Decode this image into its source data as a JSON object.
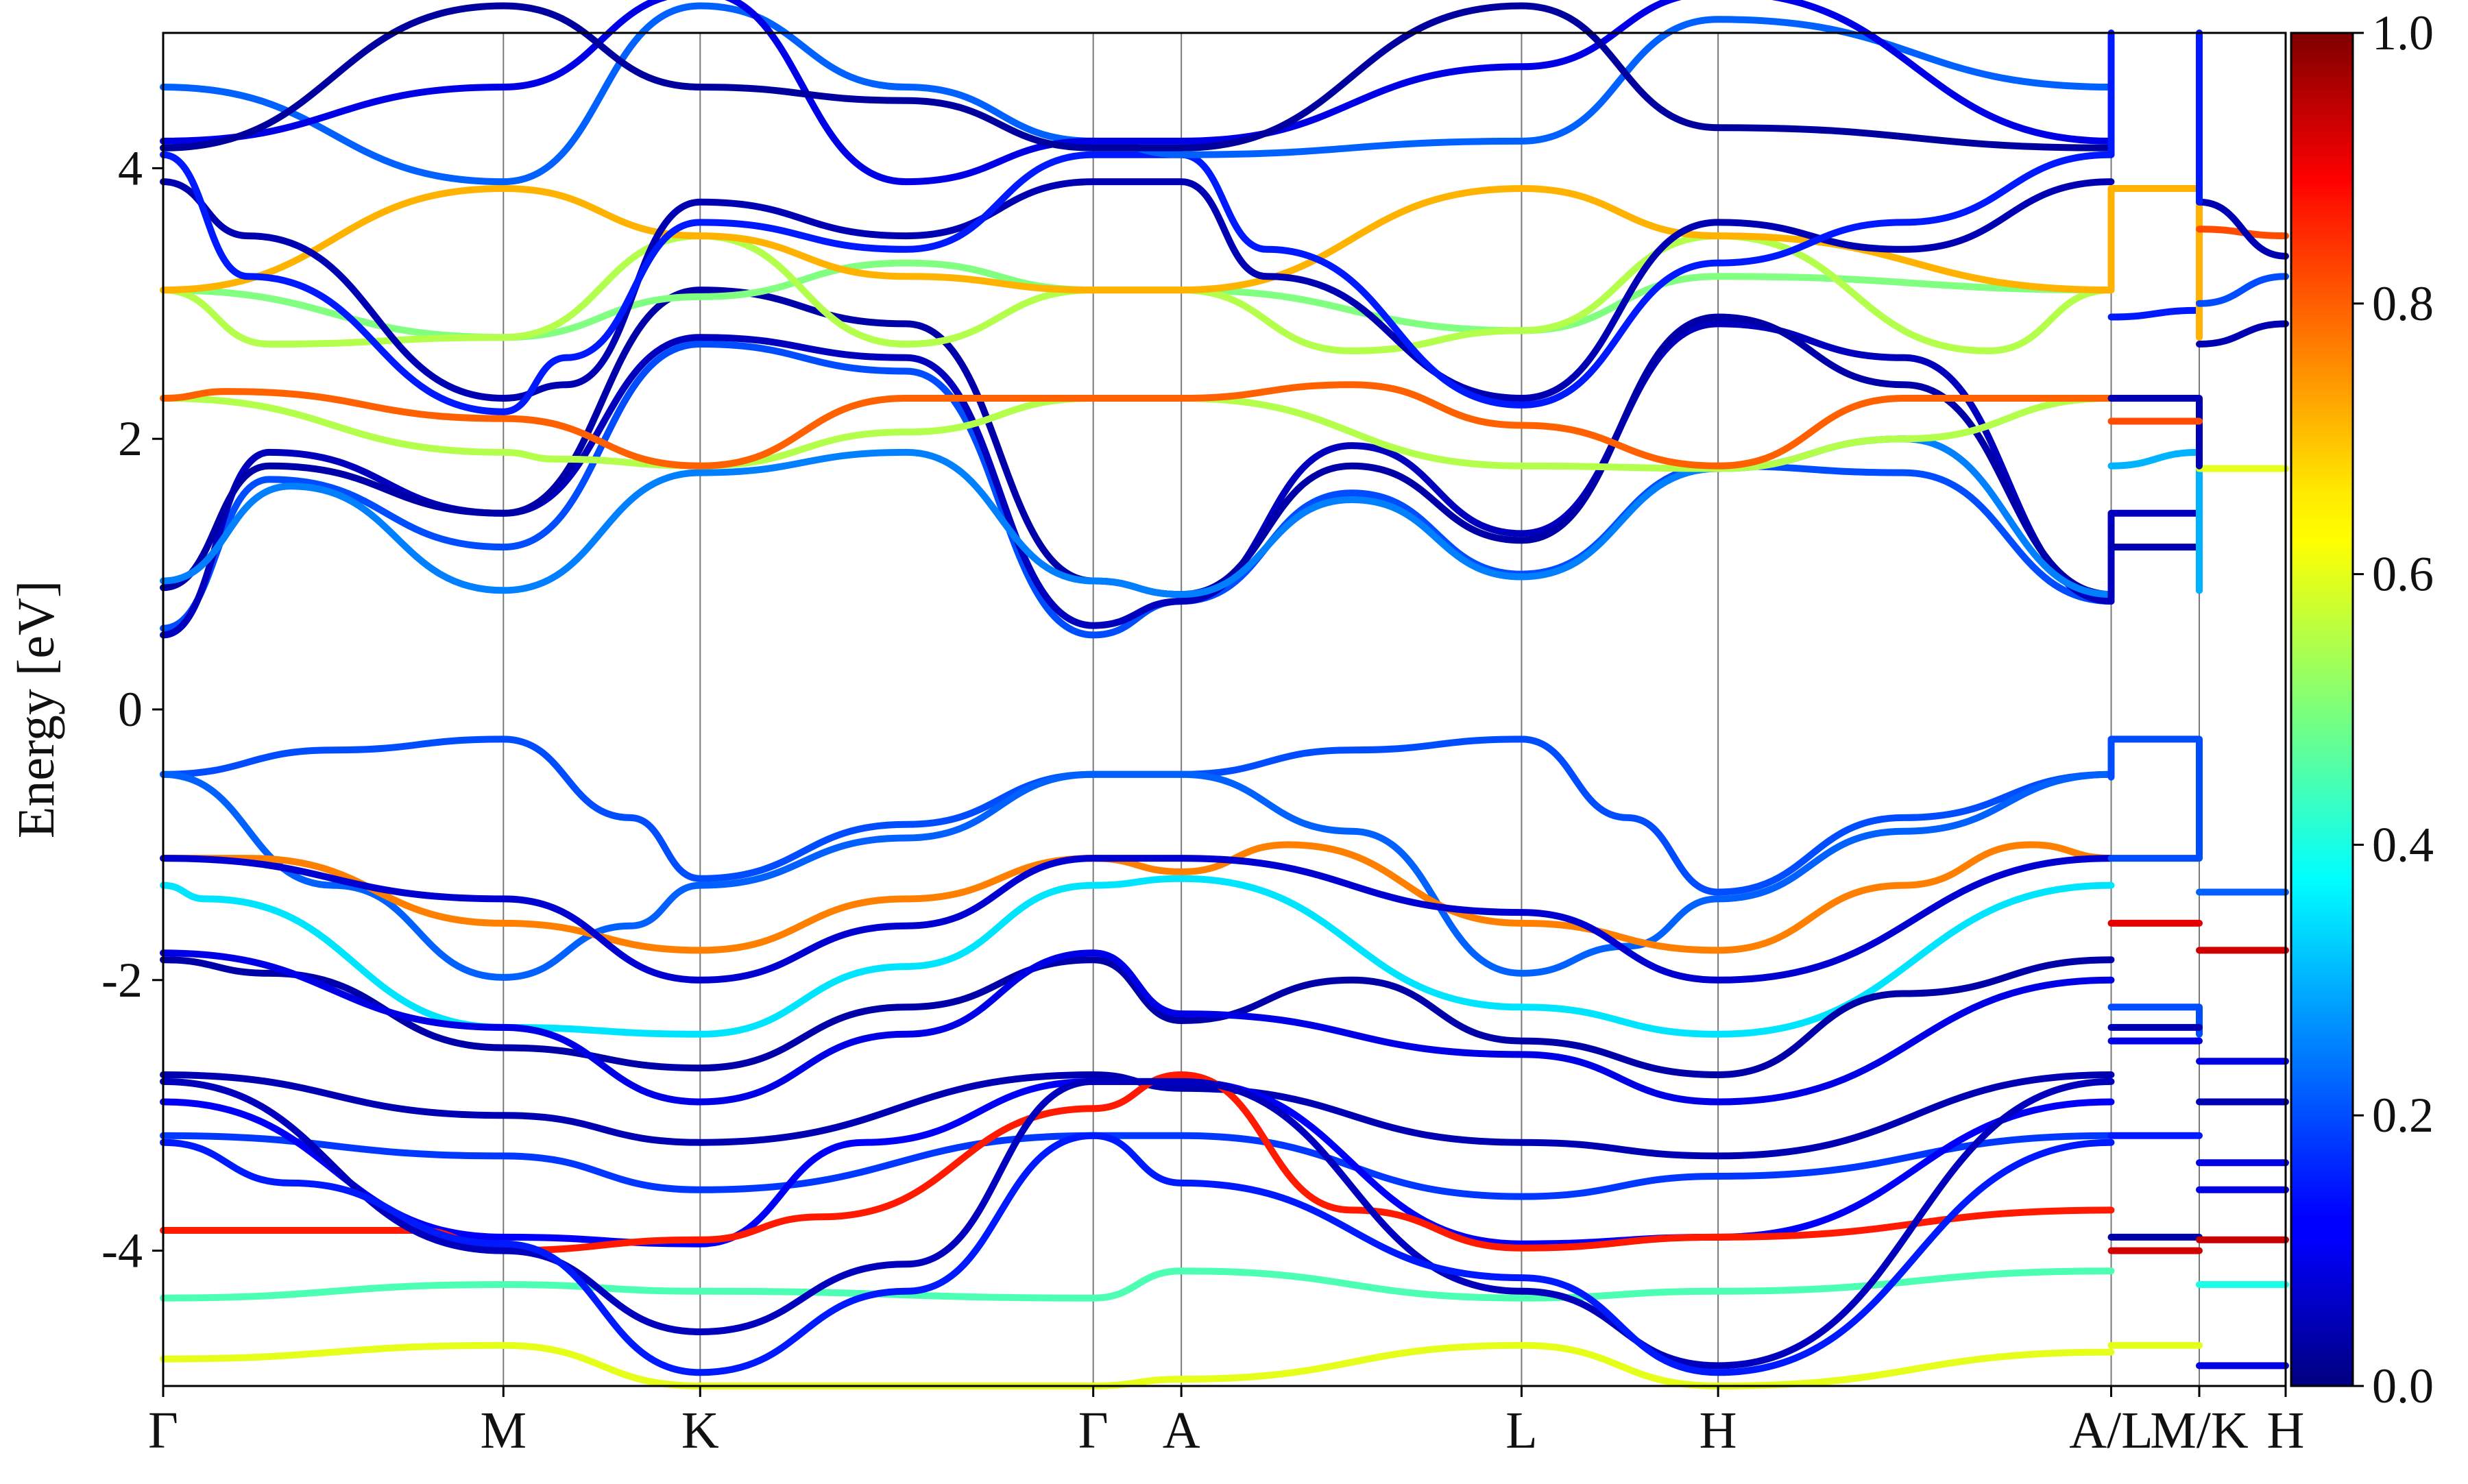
{
  "chart_data": {
    "type": "line",
    "title": "",
    "xlabel": "",
    "ylabel": "Energy [eV]",
    "ylim": [
      -5,
      5
    ],
    "y_ticks": [
      4,
      2,
      0,
      -2,
      -4
    ],
    "y_tick_labels": [
      "4",
      "2",
      "0",
      "-2",
      "-4"
    ],
    "k_points": [
      {
        "label": "Γ",
        "x": 0.0
      },
      {
        "label": "M",
        "x": 0.1603
      },
      {
        "label": "K",
        "x": 0.253
      },
      {
        "label": "Γ",
        "x": 0.4382
      },
      {
        "label": "A",
        "x": 0.4797
      },
      {
        "label": "L",
        "x": 0.64
      },
      {
        "label": "H",
        "x": 0.7326
      },
      {
        "label": "A/L",
        "x": 0.9178
      },
      {
        "label": "M/K",
        "x": 0.9593
      },
      {
        "label": "H",
        "x": 1.0
      }
    ],
    "colorbar": {
      "colormap": "jet",
      "range": [
        0.0,
        1.0
      ],
      "ticks": [
        0.0,
        0.2,
        0.4,
        0.6,
        0.8,
        1.0
      ],
      "tick_labels": [
        "0.0",
        "0.2",
        "0.4",
        "0.6",
        "0.8",
        "1.0"
      ]
    },
    "series": [
      {
        "x": [
          0,
          0.08,
          0.1603,
          0.22,
          0.253,
          0.35,
          0.4382,
          0.4797,
          0.56,
          0.64,
          0.69,
          0.7326,
          0.82,
          0.9178
        ],
        "y": [
          -0.48,
          -0.3,
          -0.22,
          -0.8,
          -1.25,
          -0.85,
          -0.48,
          -0.48,
          -0.3,
          -0.22,
          -0.8,
          -1.35,
          -0.8,
          -0.48
        ],
        "w": 0.2
      },
      {
        "x": [
          0,
          0.08,
          0.1603,
          0.22,
          0.253,
          0.35,
          0.4382,
          0.4797,
          0.56,
          0.64,
          0.69,
          0.7326,
          0.82,
          0.9178
        ],
        "y": [
          -0.48,
          -1.3,
          -1.98,
          -1.6,
          -1.3,
          -0.95,
          -0.48,
          -0.48,
          -0.9,
          -1.95,
          -1.75,
          -1.4,
          -0.9,
          -0.48
        ],
        "w": 0.22
      },
      {
        "x": [
          0,
          0.04,
          0.1603,
          0.253,
          0.35,
          0.4382,
          0.4797,
          0.53,
          0.64,
          0.7326,
          0.82,
          0.88,
          0.9178
        ],
        "y": [
          -1.1,
          -1.1,
          -1.58,
          -1.78,
          -1.4,
          -1.1,
          -1.2,
          -1.0,
          -1.58,
          -1.78,
          -1.3,
          -1.0,
          -1.1
        ],
        "w": 0.75
      },
      {
        "x": [
          0,
          0.02,
          0.1603,
          0.253,
          0.35,
          0.4382,
          0.4797,
          0.64,
          0.7326,
          0.9178
        ],
        "y": [
          -1.3,
          -1.4,
          -2.35,
          -2.4,
          -1.9,
          -1.3,
          -1.25,
          -2.2,
          -2.4,
          -1.3
        ],
        "w": 0.35
      },
      {
        "x": [
          0,
          0.1603,
          0.253,
          0.35,
          0.4382,
          0.4797,
          0.64,
          0.7326,
          0.9178
        ],
        "y": [
          -1.1,
          -1.4,
          -2.0,
          -1.6,
          -1.1,
          -1.1,
          -1.5,
          -2.0,
          -1.1
        ],
        "w": 0.08
      },
      {
        "x": [
          0,
          0.05,
          0.1603,
          0.253,
          0.35,
          0.4382,
          0.4797,
          0.56,
          0.64,
          0.7326,
          0.82,
          0.9178
        ],
        "y": [
          -1.85,
          -1.95,
          -2.5,
          -2.65,
          -2.2,
          -1.85,
          -2.3,
          -2.0,
          -2.45,
          -2.7,
          -2.1,
          -1.85
        ],
        "w": 0.04
      },
      {
        "x": [
          0,
          0.1603,
          0.253,
          0.35,
          0.4382,
          0.4797,
          0.64,
          0.7326,
          0.9178
        ],
        "y": [
          -1.8,
          -2.35,
          -2.9,
          -2.4,
          -1.8,
          -2.25,
          -2.55,
          -2.9,
          -2.0
        ],
        "w": 0.1
      },
      {
        "x": [
          0,
          0.1603,
          0.253,
          0.4382,
          0.4797,
          0.64,
          0.7326,
          0.9178
        ],
        "y": [
          -2.7,
          -3.0,
          -3.2,
          -2.7,
          -2.8,
          -3.2,
          -3.3,
          -2.7
        ],
        "w": 0.05
      },
      {
        "x": [
          0,
          0.1603,
          0.253,
          0.4382,
          0.4797,
          0.64,
          0.7326,
          0.9178
        ],
        "y": [
          -3.15,
          -3.3,
          -3.55,
          -3.15,
          -3.15,
          -3.6,
          -3.45,
          -3.15
        ],
        "w": 0.18
      },
      {
        "x": [
          0,
          0.1603,
          0.253,
          0.33,
          0.4382,
          0.4797,
          0.64,
          0.7326,
          0.9178
        ],
        "y": [
          -2.9,
          -3.9,
          -3.95,
          -3.2,
          -2.75,
          -2.75,
          -3.95,
          -3.9,
          -2.9
        ],
        "w": 0.12
      },
      {
        "x": [
          0,
          0.12,
          0.1603,
          0.253,
          0.31,
          0.4382,
          0.4797,
          0.56,
          0.64,
          0.7326,
          0.9178
        ],
        "y": [
          -3.85,
          -3.85,
          -4.0,
          -3.92,
          -3.75,
          -2.95,
          -2.7,
          -3.7,
          -3.98,
          -3.9,
          -3.7
        ],
        "w": 0.85
      },
      {
        "x": [
          0,
          0.1603,
          0.253,
          0.4382,
          0.4797,
          0.64,
          0.7326,
          0.9178
        ],
        "y": [
          -4.35,
          -4.25,
          -4.3,
          -4.35,
          -4.15,
          -4.35,
          -4.3,
          -4.15
        ],
        "w": 0.45
      },
      {
        "x": [
          0,
          0.1603,
          0.253,
          0.4382,
          0.4797,
          0.64,
          0.7326,
          0.9178
        ],
        "y": [
          -4.8,
          -4.7,
          -5.0,
          -5.0,
          -4.95,
          -4.7,
          -5.0,
          -4.75
        ],
        "w": 0.6
      },
      {
        "x": [
          0,
          0.1603,
          0.253,
          0.35,
          0.4382,
          0.4797,
          0.64,
          0.7326,
          0.9178
        ],
        "y": [
          -2.75,
          -4.0,
          -4.6,
          -4.1,
          -2.75,
          -2.75,
          -4.3,
          -4.85,
          -2.75
        ],
        "w": 0.06
      },
      {
        "x": [
          0,
          0.06,
          0.1603,
          0.253,
          0.35,
          0.4382,
          0.4797,
          0.64,
          0.7326,
          0.9178
        ],
        "y": [
          -3.2,
          -3.5,
          -3.95,
          -4.9,
          -4.3,
          -3.15,
          -3.5,
          -4.2,
          -4.9,
          -3.2
        ],
        "w": 0.15
      },
      {
        "x": [
          0,
          0.05,
          0.1603,
          0.253,
          0.35,
          0.4382,
          0.4797,
          0.56,
          0.64,
          0.7326,
          0.82,
          0.9178
        ],
        "y": [
          0.6,
          1.7,
          1.2,
          2.7,
          2.5,
          0.55,
          0.8,
          1.6,
          1.0,
          1.8,
          1.75,
          0.8
        ],
        "w": 0.2
      },
      {
        "x": [
          0,
          0.05,
          0.1603,
          0.253,
          0.35,
          0.4382,
          0.4797,
          0.56,
          0.64,
          0.7326,
          0.82,
          0.9178
        ],
        "y": [
          0.55,
          1.9,
          1.45,
          2.75,
          2.6,
          0.62,
          0.8,
          1.95,
          1.3,
          2.85,
          2.6,
          0.8
        ],
        "w": 0.06
      },
      {
        "x": [
          0,
          0.05,
          0.1603,
          0.253,
          0.35,
          0.4382,
          0.4797,
          0.56,
          0.64,
          0.7326,
          0.82,
          0.9178
        ],
        "y": [
          0.9,
          1.8,
          1.45,
          3.1,
          2.85,
          0.95,
          0.85,
          1.8,
          1.25,
          2.9,
          2.4,
          0.85
        ],
        "w": 0.04
      },
      {
        "x": [
          0,
          0.06,
          0.1603,
          0.253,
          0.35,
          0.4382,
          0.4797,
          0.56,
          0.64,
          0.7326,
          0.82,
          0.9178
        ],
        "y": [
          0.95,
          1.65,
          0.88,
          1.75,
          1.9,
          0.95,
          0.85,
          1.55,
          0.98,
          1.78,
          2.0,
          0.85
        ],
        "w": 0.25
      },
      {
        "x": [
          0,
          0.1603,
          0.185,
          0.253,
          0.35,
          0.4382,
          0.4797,
          0.64,
          0.7326,
          0.82,
          0.9178
        ],
        "y": [
          2.3,
          1.9,
          1.85,
          1.8,
          2.05,
          2.3,
          2.3,
          1.8,
          1.78,
          2.0,
          2.3
        ],
        "w": 0.55
      },
      {
        "x": [
          0,
          0.03,
          0.1603,
          0.253,
          0.35,
          0.4382,
          0.4797,
          0.56,
          0.64,
          0.7326,
          0.82,
          0.9178
        ],
        "y": [
          2.3,
          2.35,
          2.15,
          1.8,
          2.3,
          2.3,
          2.3,
          2.4,
          2.1,
          1.8,
          2.3,
          2.3
        ],
        "w": 0.78
      },
      {
        "x": [
          0,
          0.1603,
          0.253,
          0.35,
          0.4382,
          0.4797,
          0.64,
          0.7326,
          0.9178
        ],
        "y": [
          3.1,
          2.75,
          3.05,
          3.3,
          3.1,
          3.1,
          2.8,
          3.2,
          3.1
        ],
        "w": 0.5
      },
      {
        "x": [
          0,
          0.05,
          0.1603,
          0.253,
          0.35,
          0.4382,
          0.4797,
          0.56,
          0.64,
          0.7326,
          0.86,
          0.9178
        ],
        "y": [
          3.1,
          2.7,
          2.75,
          3.5,
          2.7,
          3.1,
          3.1,
          2.65,
          2.8,
          3.5,
          2.65,
          3.1
        ],
        "w": 0.55
      },
      {
        "x": [
          0,
          0.1603,
          0.253,
          0.35,
          0.4382,
          0.4797,
          0.64,
          0.7326,
          0.9178
        ],
        "y": [
          3.1,
          3.85,
          3.5,
          3.2,
          3.1,
          3.1,
          3.85,
          3.5,
          3.1
        ],
        "w": 0.7
      },
      {
        "x": [
          0,
          0.04,
          0.1603,
          0.19,
          0.253,
          0.35,
          0.4382,
          0.4797,
          0.52,
          0.64,
          0.7326,
          0.82,
          0.9178
        ],
        "y": [
          3.9,
          3.5,
          2.3,
          2.4,
          3.75,
          3.5,
          3.9,
          3.9,
          3.2,
          2.3,
          3.6,
          3.4,
          3.9
        ],
        "w": 0.05
      },
      {
        "x": [
          0,
          0.04,
          0.1603,
          0.19,
          0.253,
          0.35,
          0.4382,
          0.4797,
          0.52,
          0.64,
          0.7326,
          0.82,
          0.9178
        ],
        "y": [
          4.1,
          3.2,
          2.2,
          2.6,
          3.6,
          3.4,
          4.1,
          4.1,
          3.4,
          2.25,
          3.3,
          3.6,
          4.1
        ],
        "w": 0.15
      },
      {
        "x": [
          0,
          0.1603,
          0.253,
          0.35,
          0.4382,
          0.4797,
          0.64,
          0.7326,
          0.9178
        ],
        "y": [
          4.6,
          3.9,
          5.2,
          4.6,
          4.2,
          4.1,
          4.2,
          5.1,
          4.6
        ],
        "w": 0.22
      },
      {
        "x": [
          0,
          0.1603,
          0.253,
          0.35,
          0.4382,
          0.4797,
          0.64,
          0.7326,
          0.9178
        ],
        "y": [
          4.2,
          4.6,
          5.3,
          3.9,
          4.2,
          4.2,
          4.75,
          5.3,
          4.2
        ],
        "w": 0.1
      },
      {
        "x": [
          0,
          0.1603,
          0.253,
          0.35,
          0.4382,
          0.4797,
          0.64,
          0.7326,
          0.9178
        ],
        "y": [
          4.15,
          5.2,
          4.6,
          4.5,
          4.15,
          4.15,
          5.2,
          4.3,
          4.15
        ],
        "w": 0.03
      },
      {
        "x": [
          0.9178,
          0.9178,
          0.9593,
          0.9593,
          0.9178
        ],
        "y": [
          -0.5,
          -0.22,
          -0.22,
          -1.1,
          -1.1
        ],
        "w": 0.2
      },
      {
        "x": [
          0.9593,
          1.0
        ],
        "y": [
          -1.35,
          -1.35
        ],
        "w": 0.22
      },
      {
        "x": [
          0.9178,
          0.9593
        ],
        "y": [
          -1.58,
          -1.58
        ],
        "w": 0.9
      },
      {
        "x": [
          0.9593,
          1.0
        ],
        "y": [
          -1.78,
          -1.78
        ],
        "w": 0.92
      },
      {
        "x": [
          0.9178,
          0.9593,
          0.9593
        ],
        "y": [
          -2.2,
          -2.2,
          -2.4
        ],
        "w": 0.2
      },
      {
        "x": [
          0.9178,
          0.9593
        ],
        "y": [
          -2.35,
          -2.35
        ],
        "w": 0.05
      },
      {
        "x": [
          0.9178,
          0.9593
        ],
        "y": [
          -2.45,
          -2.45
        ],
        "w": 0.1
      },
      {
        "x": [
          0.9593,
          1.0
        ],
        "y": [
          -2.6,
          -2.6
        ],
        "w": 0.1
      },
      {
        "x": [
          0.9593,
          1.0
        ],
        "y": [
          -2.9,
          -2.9
        ],
        "w": 0.05
      },
      {
        "x": [
          0.9178,
          0.9593
        ],
        "y": [
          -3.15,
          -3.15
        ],
        "w": 0.15
      },
      {
        "x": [
          0.9593,
          1.0
        ],
        "y": [
          -3.35,
          -3.35
        ],
        "w": 0.1
      },
      {
        "x": [
          0.9593,
          1.0
        ],
        "y": [
          -3.55,
          -3.55
        ],
        "w": 0.1
      },
      {
        "x": [
          0.9178,
          0.9593
        ],
        "y": [
          -3.9,
          -3.9
        ],
        "w": 0.04
      },
      {
        "x": [
          0.9178,
          0.9593
        ],
        "y": [
          -4.0,
          -4.0
        ],
        "w": 0.92
      },
      {
        "x": [
          0.9593,
          1.0
        ],
        "y": [
          -3.92,
          -3.92
        ],
        "w": 0.93
      },
      {
        "x": [
          0.9593,
          1.0
        ],
        "y": [
          -4.25,
          -4.25
        ],
        "w": 0.4
      },
      {
        "x": [
          0.9178,
          0.9593
        ],
        "y": [
          -4.7,
          -4.7
        ],
        "w": 0.6
      },
      {
        "x": [
          0.9593,
          1.0
        ],
        "y": [
          -4.85,
          -4.85
        ],
        "w": 0.1
      },
      {
        "x": [
          0.9178,
          0.9178,
          0.9593,
          0.9593
        ],
        "y": [
          0.8,
          1.45,
          1.45,
          0.88
        ],
        "w": 0.06
      },
      {
        "x": [
          0.9178,
          0.9593
        ],
        "y": [
          1.2,
          1.2
        ],
        "w": 0.05
      },
      {
        "x": [
          0.9178,
          0.9593,
          0.9593
        ],
        "y": [
          1.8,
          1.9,
          0.88
        ],
        "w": 0.3
      },
      {
        "x": [
          0.9593,
          1.0
        ],
        "y": [
          1.78,
          1.78
        ],
        "w": 0.6
      },
      {
        "x": [
          0.9178,
          0.9593,
          0.9593
        ],
        "y": [
          2.3,
          2.3,
          1.8
        ],
        "w": 0.05
      },
      {
        "x": [
          0.9178,
          0.9593
        ],
        "y": [
          2.13,
          2.13
        ],
        "w": 0.8
      },
      {
        "x": [
          0.9178,
          0.9593
        ],
        "y": [
          2.9,
          2.95
        ],
        "w": 0.15
      },
      {
        "x": [
          0.9178,
          0.9178,
          0.9593,
          0.9593
        ],
        "y": [
          3.1,
          3.85,
          3.85,
          2.75
        ],
        "w": 0.7
      },
      {
        "x": [
          0.9593,
          1.0
        ],
        "y": [
          3.55,
          3.5
        ],
        "w": 0.8
      },
      {
        "x": [
          0.9593,
          1.0
        ],
        "y": [
          3.75,
          3.35
        ],
        "w": 0.05
      },
      {
        "x": [
          0.9593,
          1.0
        ],
        "y": [
          3.0,
          3.2
        ],
        "w": 0.2
      },
      {
        "x": [
          0.9593,
          1.0
        ],
        "y": [
          2.7,
          2.85
        ],
        "w": 0.05
      },
      {
        "x": [
          0.9178,
          0.9178
        ],
        "y": [
          4.1,
          5.0
        ],
        "w": 0.15
      },
      {
        "x": [
          0.9593,
          0.9593
        ],
        "y": [
          3.75,
          5.0
        ],
        "w": 0.15
      }
    ]
  }
}
